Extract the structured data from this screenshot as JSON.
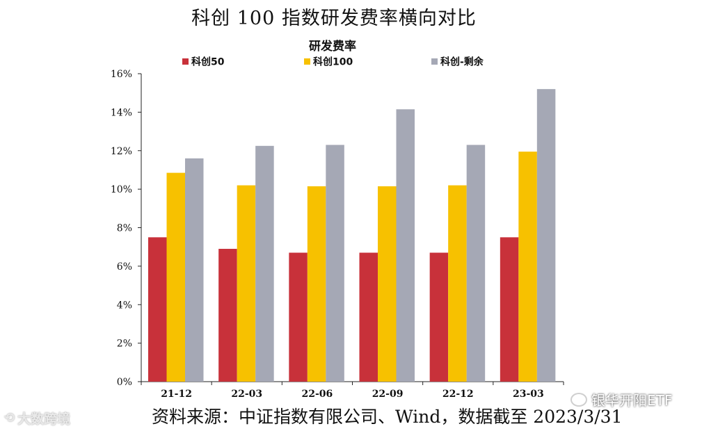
{
  "page": {
    "title": "科创 100 指数研发费率横向对比",
    "source_note": "资料来源：中证指数有限公司、Wind，数据截至 2023/3/31",
    "watermark_left": "大数跨境",
    "watermark_right": "银华开阳ETF"
  },
  "chart_data": {
    "type": "bar",
    "title": "研发费率",
    "categories": [
      "21-12",
      "22-03",
      "22-06",
      "22-09",
      "22-12",
      "23-03"
    ],
    "series": [
      {
        "name": "科创50",
        "color": "#c8313a",
        "values": [
          7.5,
          6.9,
          6.7,
          6.7,
          6.7,
          7.5
        ]
      },
      {
        "name": "科创100",
        "color": "#f7c100",
        "values": [
          10.85,
          10.2,
          10.15,
          10.15,
          10.2,
          11.95
        ]
      },
      {
        "name": "科创-剩余",
        "color": "#a5a8b5",
        "values": [
          11.6,
          12.25,
          12.3,
          14.15,
          12.3,
          15.2
        ]
      }
    ],
    "ylim": [
      0,
      16
    ],
    "yticks": [
      0,
      2,
      4,
      6,
      8,
      10,
      12,
      14,
      16
    ],
    "ytick_format": "%",
    "grid": false,
    "legend_position": "top"
  }
}
